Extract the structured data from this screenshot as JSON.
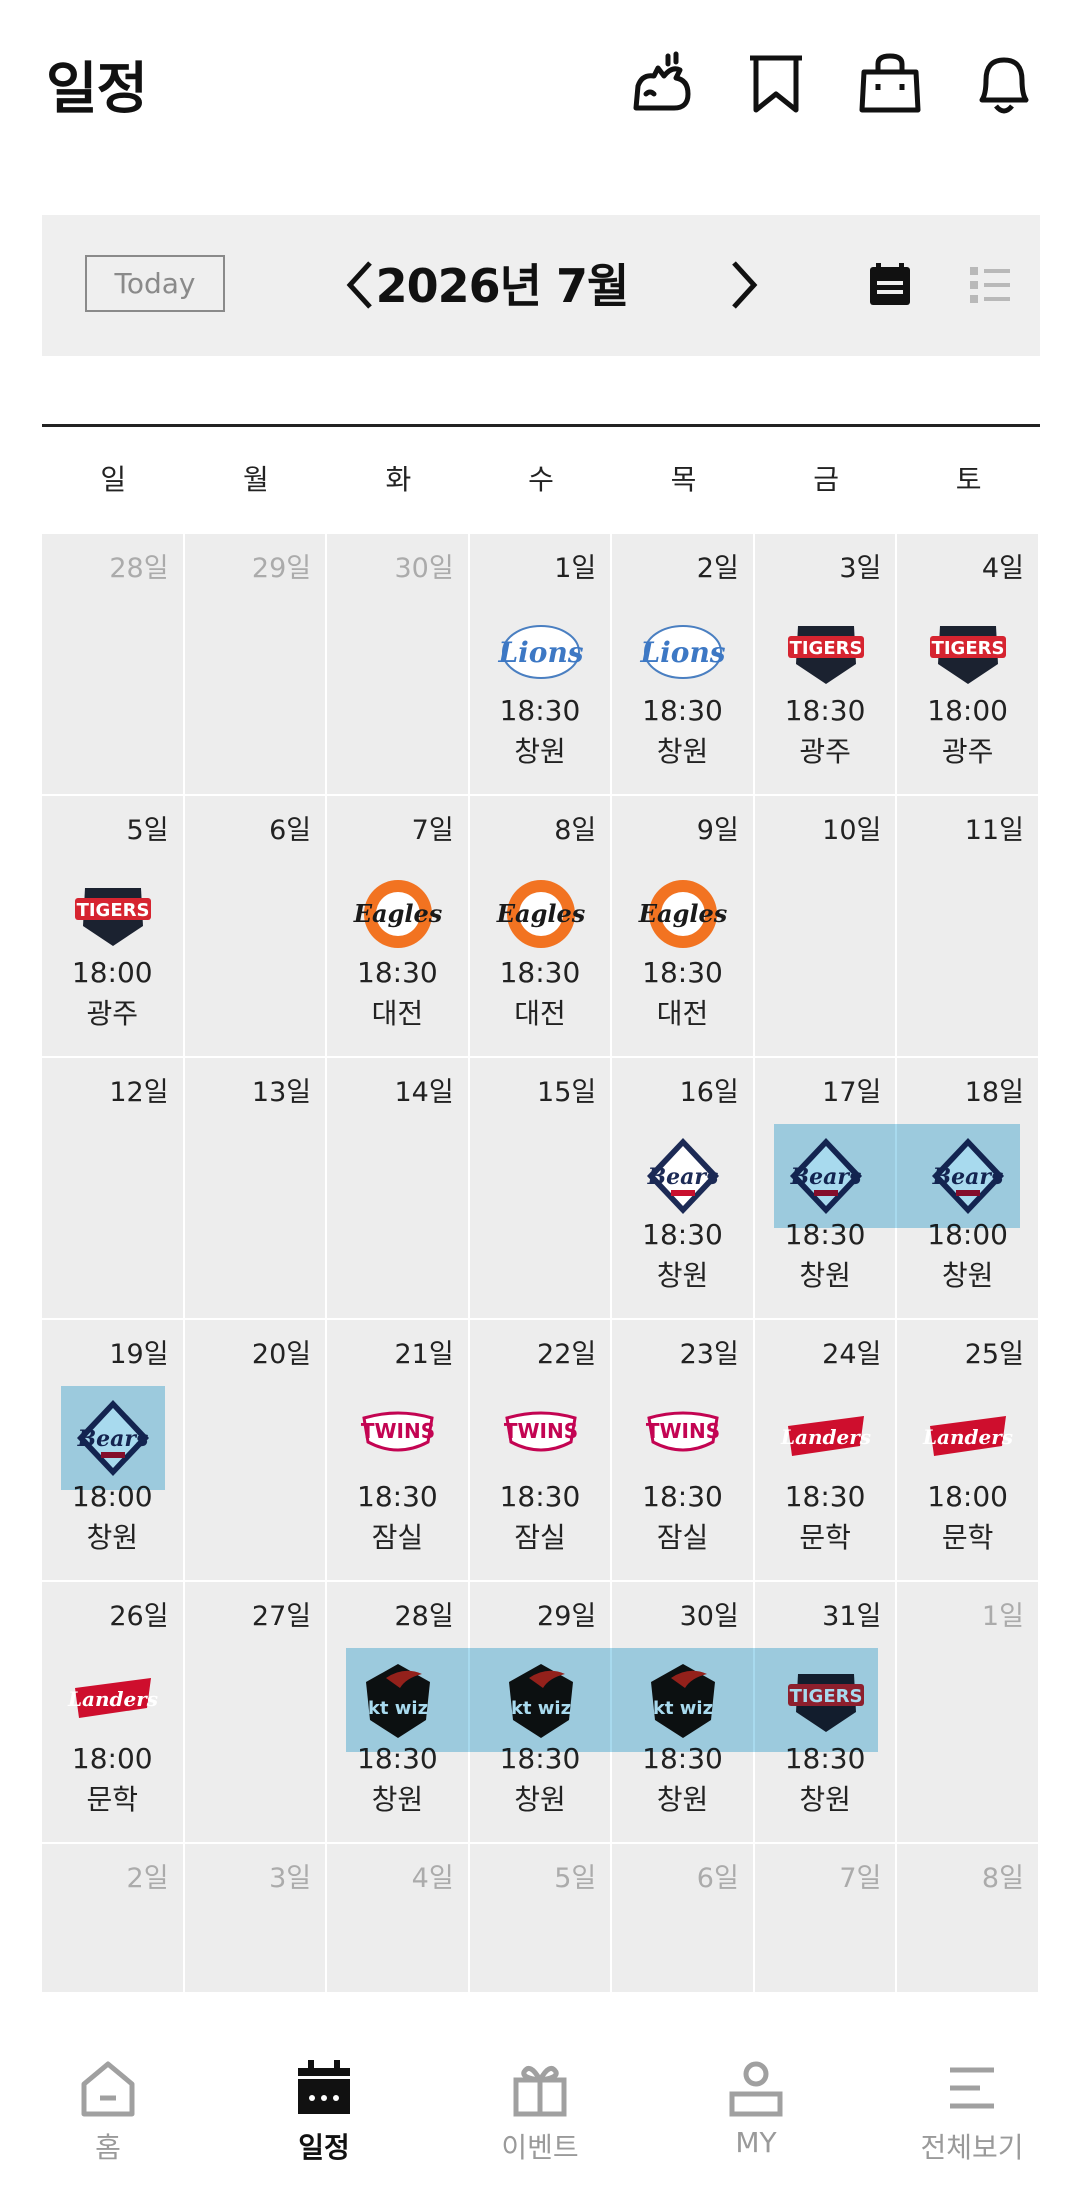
{
  "header": {
    "title": "일정",
    "icons": [
      "animal-mascot-icon",
      "bookmark-icon",
      "shopping-bag-icon",
      "bell-icon"
    ]
  },
  "toolbar": {
    "today_label": "Today",
    "month_label": "2026년 7월",
    "prev_icon": "chevron-left-icon",
    "next_icon": "chevron-right-icon",
    "calendar_view_icon": "calendar-view-icon",
    "list_view_icon": "list-view-icon"
  },
  "weekdays": [
    "일",
    "월",
    "화",
    "수",
    "목",
    "금",
    "토"
  ],
  "weeks": [
    [
      {
        "day": "28일",
        "other": true
      },
      {
        "day": "29일",
        "other": true
      },
      {
        "day": "30일",
        "other": true
      },
      {
        "day": "1일",
        "team": "Lions",
        "time": "18:30",
        "venue": "창원"
      },
      {
        "day": "2일",
        "team": "Lions",
        "time": "18:30",
        "venue": "창원"
      },
      {
        "day": "3일",
        "team": "TIGERS",
        "time": "18:30",
        "venue": "광주"
      },
      {
        "day": "4일",
        "team": "TIGERS",
        "time": "18:00",
        "venue": "광주"
      }
    ],
    [
      {
        "day": "5일",
        "team": "TIGERS",
        "time": "18:00",
        "venue": "광주"
      },
      {
        "day": "6일"
      },
      {
        "day": "7일",
        "team": "Eagles",
        "time": "18:30",
        "venue": "대전"
      },
      {
        "day": "8일",
        "team": "Eagles",
        "time": "18:30",
        "venue": "대전"
      },
      {
        "day": "9일",
        "team": "Eagles",
        "time": "18:30",
        "venue": "대전"
      },
      {
        "day": "10일"
      },
      {
        "day": "11일"
      }
    ],
    [
      {
        "day": "12일"
      },
      {
        "day": "13일"
      },
      {
        "day": "14일"
      },
      {
        "day": "15일"
      },
      {
        "day": "16일",
        "team": "Bears",
        "time": "18:30",
        "venue": "창원"
      },
      {
        "day": "17일",
        "team": "Bears",
        "time": "18:30",
        "venue": "창원",
        "highlight": true
      },
      {
        "day": "18일",
        "team": "Bears",
        "time": "18:00",
        "venue": "창원",
        "highlight": true
      }
    ],
    [
      {
        "day": "19일",
        "team": "Bears",
        "time": "18:00",
        "venue": "창원",
        "highlight": true
      },
      {
        "day": "20일"
      },
      {
        "day": "21일",
        "team": "TWINS",
        "time": "18:30",
        "venue": "잠실"
      },
      {
        "day": "22일",
        "team": "TWINS",
        "time": "18:30",
        "venue": "잠실"
      },
      {
        "day": "23일",
        "team": "TWINS",
        "time": "18:30",
        "venue": "잠실"
      },
      {
        "day": "24일",
        "team": "Landers",
        "time": "18:30",
        "venue": "문학"
      },
      {
        "day": "25일",
        "team": "Landers",
        "time": "18:00",
        "venue": "문학"
      }
    ],
    [
      {
        "day": "26일",
        "team": "Landers",
        "time": "18:00",
        "venue": "문학"
      },
      {
        "day": "27일"
      },
      {
        "day": "28일",
        "team": "kt wiz",
        "time": "18:30",
        "venue": "창원",
        "highlight": true
      },
      {
        "day": "29일",
        "team": "kt wiz",
        "time": "18:30",
        "venue": "창원",
        "highlight": true
      },
      {
        "day": "30일",
        "team": "kt wiz",
        "time": "18:30",
        "venue": "창원",
        "highlight": true
      },
      {
        "day": "31일",
        "team": "TIGERS",
        "time": "18:30",
        "venue": "창원",
        "highlight": true
      },
      {
        "day": "1일",
        "other": true
      }
    ],
    [
      {
        "day": "2일",
        "other": true
      },
      {
        "day": "3일",
        "other": true
      },
      {
        "day": "4일",
        "other": true
      },
      {
        "day": "5일",
        "other": true
      },
      {
        "day": "6일",
        "other": true
      },
      {
        "day": "7일",
        "other": true
      },
      {
        "day": "8일",
        "other": true
      }
    ]
  ],
  "colors": {
    "highlight": "#a8daee",
    "cell_bg": "#ededed",
    "toolbar_bg": "#efefef"
  },
  "bottom_nav": [
    {
      "label": "홈",
      "icon": "home-icon",
      "active": false
    },
    {
      "label": "일정",
      "icon": "calendar-icon",
      "active": true
    },
    {
      "label": "이벤트",
      "icon": "gift-icon",
      "active": false
    },
    {
      "label": "MY",
      "icon": "person-icon",
      "active": false
    },
    {
      "label": "전체보기",
      "icon": "menu-icon",
      "active": false
    }
  ]
}
